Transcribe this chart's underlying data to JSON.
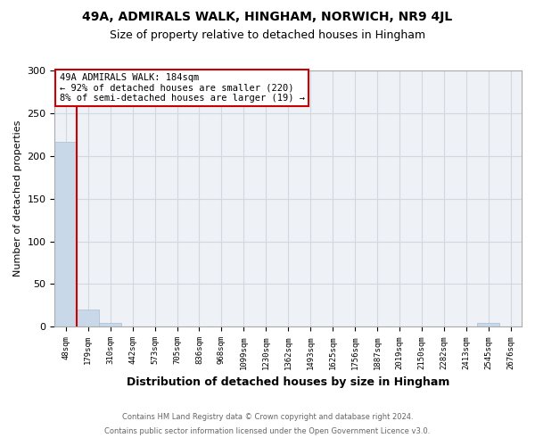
{
  "title1": "49A, ADMIRALS WALK, HINGHAM, NORWICH, NR9 4JL",
  "title2": "Size of property relative to detached houses in Hingham",
  "xlabel": "Distribution of detached houses by size in Hingham",
  "ylabel": "Number of detached properties",
  "bar_labels": [
    "48sqm",
    "179sqm",
    "310sqm",
    "442sqm",
    "573sqm",
    "705sqm",
    "836sqm",
    "968sqm",
    "1099sqm",
    "1230sqm",
    "1362sqm",
    "1493sqm",
    "1625sqm",
    "1756sqm",
    "1887sqm",
    "2019sqm",
    "2150sqm",
    "2282sqm",
    "2413sqm",
    "2545sqm",
    "2676sqm"
  ],
  "bar_values": [
    216,
    20,
    4,
    0,
    0,
    0,
    0,
    0,
    0,
    0,
    0,
    0,
    0,
    0,
    0,
    0,
    0,
    0,
    0,
    5,
    0
  ],
  "bar_color": "#c8d8e8",
  "bar_edge_color": "#a8bece",
  "vline_color": "#cc0000",
  "annotation_text": "49A ADMIRALS WALK: 184sqm\n← 92% of detached houses are smaller (220)\n8% of semi-detached houses are larger (19) →",
  "annotation_box_color": "#ffffff",
  "annotation_box_edge": "#cc0000",
  "ylim": [
    0,
    300
  ],
  "yticks": [
    0,
    50,
    100,
    150,
    200,
    250,
    300
  ],
  "grid_color": "#d0d8e4",
  "background_color": "#eef2f7",
  "footer1": "Contains HM Land Registry data © Crown copyright and database right 2024.",
  "footer2": "Contains public sector information licensed under the Open Government Licence v3.0.",
  "title1_fontsize": 10,
  "title2_fontsize": 9,
  "xlabel_fontsize": 9,
  "ylabel_fontsize": 8,
  "tick_fontsize": 6.5,
  "footer_fontsize": 6,
  "footer_color": "#666666"
}
